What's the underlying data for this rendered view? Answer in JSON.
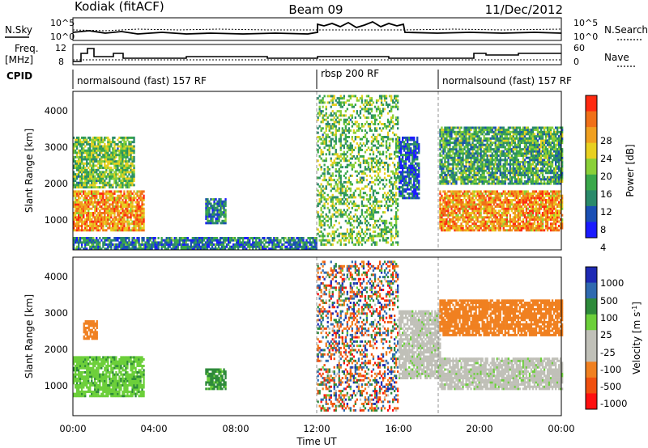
{
  "header": {
    "radar": "Kodiak (fitACF)",
    "beam": "Beam 09",
    "date": "11/Dec/2012"
  },
  "left_labels": {
    "nsky": "N.Sky",
    "freq_top": "Freq.",
    "freq_unit": "[MHz]",
    "cpid": "CPID"
  },
  "right_labels": {
    "nsearch": "N.Search",
    "nave": "Nave"
  },
  "noise_axis": {
    "left_ticks": [
      "10^5",
      "10^0"
    ],
    "right_ticks": [
      "10^5",
      "10^0"
    ]
  },
  "freq_axis": {
    "left_ticks": [
      "12",
      "8"
    ],
    "right_ticks": [
      "60",
      "0"
    ]
  },
  "cpid_segments": [
    {
      "label": "normalsound (fast) 157 RF",
      "start_hour": 0,
      "end_hour": 12
    },
    {
      "label": "rbsp 200 RF",
      "start_hour": 12,
      "end_hour": 18
    },
    {
      "label": "normalsound (fast) 157 RF",
      "start_hour": 18,
      "end_hour": 24
    }
  ],
  "power_colorbar": {
    "label": "Power [dB]",
    "ticks": [
      "28",
      "24",
      "20",
      "16",
      "12",
      "8",
      "4"
    ],
    "colors": [
      "#1a1aff",
      "#1a4fb4",
      "#2a8a6a",
      "#3aa84a",
      "#8ad038",
      "#e8d020",
      "#f0a020",
      "#f07018",
      "#ff2a10"
    ]
  },
  "velocity_colorbar": {
    "label_main": "Velocity [m s",
    "label_sup": "-1",
    "label_end": "]",
    "ticks": [
      "1000",
      "500",
      "100",
      "25",
      "-25",
      "-100",
      "-500",
      "-1000"
    ],
    "colors": [
      "#1e2ab4",
      "#2f6ab0",
      "#2e8a3a",
      "#6ccf3a",
      "#c0c0b8",
      "#c0c0b8",
      "#f08020",
      "#f0500f",
      "#ff1010"
    ]
  },
  "x_axis": {
    "title": "Time UT",
    "ticks": [
      "00:00",
      "04:00",
      "08:00",
      "12:00",
      "16:00",
      "20:00",
      "00:00"
    ]
  },
  "y_axis": {
    "title": "Slant Range [km]",
    "ticks": [
      "4000",
      "3000",
      "2000",
      "1000"
    ]
  },
  "chart_data": [
    {
      "type": "heatmap",
      "title": "Power",
      "xlabel": "Time UT",
      "ylabel": "Slant Range [km]",
      "xlim_hours": [
        0,
        24
      ],
      "ylim_km": [
        180,
        4600
      ],
      "colorbar_label": "Power [dB]",
      "clim_db": [
        0,
        32
      ],
      "regions": [
        {
          "t0": 0.0,
          "t1": 3.5,
          "r0": 700,
          "r1": 1800,
          "value_db": 24
        },
        {
          "t0": 0.0,
          "t1": 3.0,
          "r0": 1900,
          "r1": 3300,
          "value_db": 14
        },
        {
          "t0": 6.5,
          "t1": 7.5,
          "r0": 900,
          "r1": 1600,
          "value_db": 8
        },
        {
          "t0": 0.0,
          "t1": 12.0,
          "r0": 180,
          "r1": 500,
          "value_db": 8
        },
        {
          "t0": 12.0,
          "t1": 16.0,
          "r0": 300,
          "r1": 4500,
          "value_db": 14
        },
        {
          "t0": 16.0,
          "t1": 17.0,
          "r0": 1600,
          "r1": 3300,
          "value_db": 6
        },
        {
          "t0": 18.0,
          "t1": 24.0,
          "r0": 700,
          "r1": 1800,
          "value_db": 24
        },
        {
          "t0": 18.0,
          "t1": 24.0,
          "r0": 2000,
          "r1": 3600,
          "value_db": 12
        }
      ]
    },
    {
      "type": "heatmap",
      "title": "Velocity",
      "xlabel": "Time UT",
      "ylabel": "Slant Range [km]",
      "xlim_hours": [
        0,
        24
      ],
      "ylim_km": [
        180,
        4600
      ],
      "colorbar_label": "Velocity [m s-1]",
      "clim_ms": [
        -1000,
        1000
      ],
      "regions": [
        {
          "t0": 0.0,
          "t1": 3.5,
          "r0": 700,
          "r1": 1800,
          "value_ms": 80
        },
        {
          "t0": 0.5,
          "t1": 1.2,
          "r0": 2300,
          "r1": 2800,
          "value_ms": -300
        },
        {
          "t0": 6.5,
          "t1": 7.5,
          "r0": 900,
          "r1": 1500,
          "value_ms": 120
        },
        {
          "t0": 12.0,
          "t1": 16.0,
          "r0": 300,
          "r1": 4500,
          "value_ms": 0
        },
        {
          "t0": 16.0,
          "t1": 18.0,
          "r0": 1200,
          "r1": 3100,
          "value_ms": 0
        },
        {
          "t0": 18.0,
          "t1": 24.0,
          "r0": 900,
          "r1": 1800,
          "value_ms": 0
        },
        {
          "t0": 18.0,
          "t1": 24.0,
          "r0": 2400,
          "r1": 3400,
          "value_ms": -200
        }
      ]
    }
  ]
}
